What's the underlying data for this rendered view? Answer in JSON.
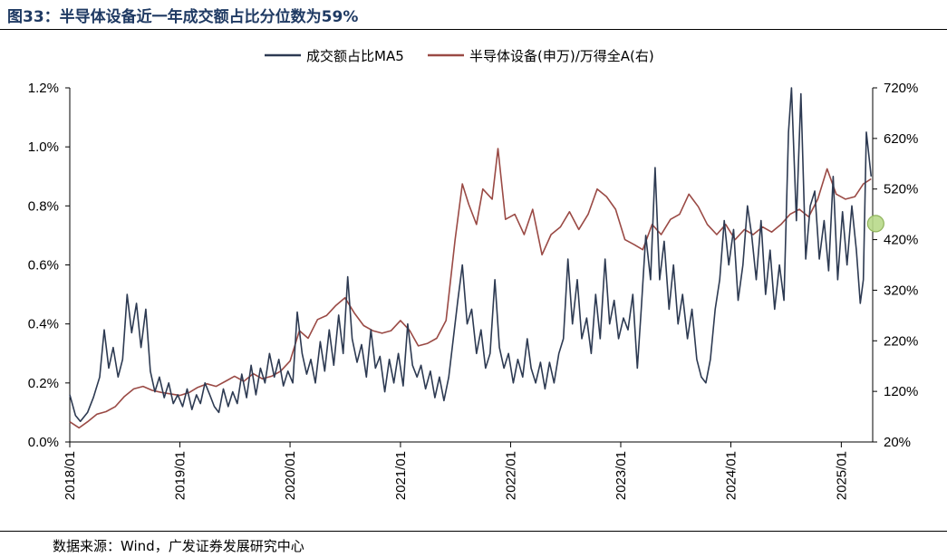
{
  "figure": {
    "title": "图33：半导体设备近一年成交额占比分位数为59%",
    "source": "数据来源：Wind，广发证券发展研究中心"
  },
  "chart_data": {
    "type": "line",
    "title": "图33：半导体设备近一年成交额占比分位数为59%",
    "legend_position": "top-center",
    "grid": false,
    "x_axis": {
      "type": "date",
      "range": [
        "2018-01-01",
        "2025-04-15"
      ],
      "tick_labels": [
        "2018/01",
        "2019/01",
        "2020/01",
        "2021/01",
        "2022/01",
        "2023/01",
        "2024/01",
        "2025/01"
      ],
      "tick_dates": [
        "2018-01-01",
        "2019-01-01",
        "2020-01-01",
        "2021-01-01",
        "2022-01-01",
        "2023-01-01",
        "2024-01-01",
        "2025-01-01"
      ]
    },
    "y_left": {
      "range": [
        0,
        1.2
      ],
      "unit": "%",
      "ticks": [
        0,
        0.2,
        0.4,
        0.6,
        0.8,
        1.0,
        1.2
      ],
      "tick_labels": [
        "0.0%",
        "0.2%",
        "0.4%",
        "0.6%",
        "0.8%",
        "1.0%",
        "1.2%"
      ]
    },
    "y_right": {
      "range": [
        20,
        720
      ],
      "unit": "%",
      "ticks": [
        20,
        120,
        220,
        320,
        420,
        520,
        620,
        720
      ],
      "tick_labels": [
        "20%",
        "120%",
        "220%",
        "320%",
        "420%",
        "520%",
        "620%",
        "720%"
      ]
    },
    "series": [
      {
        "name": "成交额占比MA5",
        "axis": "left",
        "color": "#2d3a52",
        "points": [
          [
            "2018-01-01",
            0.16
          ],
          [
            "2018-01-20",
            0.09
          ],
          [
            "2018-02-05",
            0.07
          ],
          [
            "2018-03-01",
            0.1
          ],
          [
            "2018-03-20",
            0.15
          ],
          [
            "2018-04-10",
            0.22
          ],
          [
            "2018-04-25",
            0.38
          ],
          [
            "2018-05-10",
            0.25
          ],
          [
            "2018-05-25",
            0.32
          ],
          [
            "2018-06-10",
            0.22
          ],
          [
            "2018-06-25",
            0.28
          ],
          [
            "2018-07-10",
            0.5
          ],
          [
            "2018-07-25",
            0.37
          ],
          [
            "2018-08-10",
            0.47
          ],
          [
            "2018-08-25",
            0.32
          ],
          [
            "2018-09-10",
            0.45
          ],
          [
            "2018-09-25",
            0.24
          ],
          [
            "2018-10-10",
            0.17
          ],
          [
            "2018-10-25",
            0.22
          ],
          [
            "2018-11-10",
            0.15
          ],
          [
            "2018-11-25",
            0.2
          ],
          [
            "2018-12-10",
            0.13
          ],
          [
            "2018-12-25",
            0.16
          ],
          [
            "2019-01-10",
            0.12
          ],
          [
            "2019-01-25",
            0.18
          ],
          [
            "2019-02-10",
            0.11
          ],
          [
            "2019-02-25",
            0.16
          ],
          [
            "2019-03-10",
            0.13
          ],
          [
            "2019-03-25",
            0.2
          ],
          [
            "2019-04-10",
            0.16
          ],
          [
            "2019-04-25",
            0.12
          ],
          [
            "2019-05-10",
            0.1
          ],
          [
            "2019-05-25",
            0.18
          ],
          [
            "2019-06-10",
            0.12
          ],
          [
            "2019-06-25",
            0.17
          ],
          [
            "2019-07-10",
            0.13
          ],
          [
            "2019-07-25",
            0.23
          ],
          [
            "2019-08-10",
            0.15
          ],
          [
            "2019-08-25",
            0.26
          ],
          [
            "2019-09-10",
            0.16
          ],
          [
            "2019-09-25",
            0.25
          ],
          [
            "2019-10-10",
            0.2
          ],
          [
            "2019-10-25",
            0.3
          ],
          [
            "2019-11-10",
            0.22
          ],
          [
            "2019-11-25",
            0.28
          ],
          [
            "2019-12-10",
            0.19
          ],
          [
            "2019-12-25",
            0.24
          ],
          [
            "2020-01-10",
            0.2
          ],
          [
            "2020-01-25",
            0.44
          ],
          [
            "2020-02-10",
            0.3
          ],
          [
            "2020-02-25",
            0.23
          ],
          [
            "2020-03-10",
            0.28
          ],
          [
            "2020-03-25",
            0.2
          ],
          [
            "2020-04-10",
            0.34
          ],
          [
            "2020-04-25",
            0.24
          ],
          [
            "2020-05-10",
            0.38
          ],
          [
            "2020-05-25",
            0.26
          ],
          [
            "2020-06-10",
            0.43
          ],
          [
            "2020-06-25",
            0.3
          ],
          [
            "2020-07-10",
            0.56
          ],
          [
            "2020-07-25",
            0.35
          ],
          [
            "2020-08-10",
            0.27
          ],
          [
            "2020-08-25",
            0.33
          ],
          [
            "2020-09-10",
            0.22
          ],
          [
            "2020-09-25",
            0.38
          ],
          [
            "2020-10-10",
            0.25
          ],
          [
            "2020-10-25",
            0.29
          ],
          [
            "2020-11-10",
            0.17
          ],
          [
            "2020-11-25",
            0.28
          ],
          [
            "2020-12-10",
            0.2
          ],
          [
            "2020-12-25",
            0.3
          ],
          [
            "2021-01-10",
            0.19
          ],
          [
            "2021-01-25",
            0.4
          ],
          [
            "2021-02-10",
            0.26
          ],
          [
            "2021-02-25",
            0.22
          ],
          [
            "2021-03-10",
            0.26
          ],
          [
            "2021-03-25",
            0.18
          ],
          [
            "2021-04-10",
            0.24
          ],
          [
            "2021-04-25",
            0.15
          ],
          [
            "2021-05-10",
            0.22
          ],
          [
            "2021-05-25",
            0.14
          ],
          [
            "2021-06-10",
            0.22
          ],
          [
            "2021-06-25",
            0.35
          ],
          [
            "2021-07-10",
            0.48
          ],
          [
            "2021-07-25",
            0.6
          ],
          [
            "2021-08-10",
            0.4
          ],
          [
            "2021-08-25",
            0.45
          ],
          [
            "2021-09-10",
            0.3
          ],
          [
            "2021-09-25",
            0.38
          ],
          [
            "2021-10-10",
            0.25
          ],
          [
            "2021-10-25",
            0.3
          ],
          [
            "2021-11-10",
            0.55
          ],
          [
            "2021-11-25",
            0.32
          ],
          [
            "2021-12-10",
            0.25
          ],
          [
            "2021-12-25",
            0.3
          ],
          [
            "2022-01-10",
            0.2
          ],
          [
            "2022-01-25",
            0.28
          ],
          [
            "2022-02-10",
            0.22
          ],
          [
            "2022-02-25",
            0.35
          ],
          [
            "2022-03-10",
            0.25
          ],
          [
            "2022-03-25",
            0.2
          ],
          [
            "2022-04-10",
            0.27
          ],
          [
            "2022-04-25",
            0.18
          ],
          [
            "2022-05-10",
            0.27
          ],
          [
            "2022-05-25",
            0.2
          ],
          [
            "2022-06-10",
            0.3
          ],
          [
            "2022-06-25",
            0.35
          ],
          [
            "2022-07-10",
            0.62
          ],
          [
            "2022-07-25",
            0.4
          ],
          [
            "2022-08-10",
            0.55
          ],
          [
            "2022-08-25",
            0.35
          ],
          [
            "2022-09-10",
            0.42
          ],
          [
            "2022-09-25",
            0.3
          ],
          [
            "2022-10-10",
            0.5
          ],
          [
            "2022-10-25",
            0.35
          ],
          [
            "2022-11-10",
            0.62
          ],
          [
            "2022-11-25",
            0.4
          ],
          [
            "2022-12-10",
            0.48
          ],
          [
            "2022-12-25",
            0.35
          ],
          [
            "2023-01-10",
            0.42
          ],
          [
            "2023-01-25",
            0.38
          ],
          [
            "2023-02-10",
            0.5
          ],
          [
            "2023-02-25",
            0.25
          ],
          [
            "2023-03-10",
            0.45
          ],
          [
            "2023-03-25",
            0.7
          ],
          [
            "2023-04-10",
            0.55
          ],
          [
            "2023-04-25",
            0.93
          ],
          [
            "2023-05-10",
            0.55
          ],
          [
            "2023-05-25",
            0.68
          ],
          [
            "2023-06-10",
            0.45
          ],
          [
            "2023-06-25",
            0.6
          ],
          [
            "2023-07-10",
            0.4
          ],
          [
            "2023-07-25",
            0.5
          ],
          [
            "2023-08-10",
            0.35
          ],
          [
            "2023-08-25",
            0.45
          ],
          [
            "2023-09-10",
            0.28
          ],
          [
            "2023-09-25",
            0.22
          ],
          [
            "2023-10-10",
            0.2
          ],
          [
            "2023-10-25",
            0.28
          ],
          [
            "2023-11-10",
            0.45
          ],
          [
            "2023-11-25",
            0.55
          ],
          [
            "2023-12-10",
            0.75
          ],
          [
            "2023-12-25",
            0.6
          ],
          [
            "2024-01-10",
            0.72
          ],
          [
            "2024-01-25",
            0.48
          ],
          [
            "2024-02-10",
            0.6
          ],
          [
            "2024-02-25",
            0.8
          ],
          [
            "2024-03-10",
            0.7
          ],
          [
            "2024-03-25",
            0.55
          ],
          [
            "2024-04-10",
            0.75
          ],
          [
            "2024-04-25",
            0.5
          ],
          [
            "2024-05-10",
            0.65
          ],
          [
            "2024-05-25",
            0.45
          ],
          [
            "2024-06-10",
            0.6
          ],
          [
            "2024-06-25",
            0.48
          ],
          [
            "2024-07-10",
            1.05
          ],
          [
            "2024-07-20",
            1.2
          ],
          [
            "2024-08-05",
            0.75
          ],
          [
            "2024-08-20",
            1.18
          ],
          [
            "2024-09-05",
            0.62
          ],
          [
            "2024-09-20",
            0.8
          ],
          [
            "2024-10-05",
            0.85
          ],
          [
            "2024-10-20",
            0.62
          ],
          [
            "2024-11-05",
            0.75
          ],
          [
            "2024-11-20",
            0.58
          ],
          [
            "2024-12-05",
            0.9
          ],
          [
            "2024-12-20",
            0.55
          ],
          [
            "2025-01-05",
            0.78
          ],
          [
            "2025-01-20",
            0.6
          ],
          [
            "2025-02-05",
            0.8
          ],
          [
            "2025-02-20",
            0.65
          ],
          [
            "2025-03-05",
            0.47
          ],
          [
            "2025-03-15",
            0.55
          ],
          [
            "2025-03-25",
            1.05
          ],
          [
            "2025-04-10",
            0.9
          ]
        ]
      },
      {
        "name": "半导体设备(申万)/万得全A(右)",
        "axis": "right",
        "color": "#9a4a45",
        "points": [
          [
            "2018-01-01",
            60
          ],
          [
            "2018-02-01",
            48
          ],
          [
            "2018-03-01",
            60
          ],
          [
            "2018-04-01",
            75
          ],
          [
            "2018-05-01",
            80
          ],
          [
            "2018-06-01",
            90
          ],
          [
            "2018-07-01",
            110
          ],
          [
            "2018-08-01",
            125
          ],
          [
            "2018-09-01",
            130
          ],
          [
            "2018-10-01",
            122
          ],
          [
            "2018-11-01",
            118
          ],
          [
            "2018-12-01",
            115
          ],
          [
            "2019-01-01",
            112
          ],
          [
            "2019-02-01",
            118
          ],
          [
            "2019-03-01",
            128
          ],
          [
            "2019-04-01",
            135
          ],
          [
            "2019-05-01",
            130
          ],
          [
            "2019-06-01",
            140
          ],
          [
            "2019-07-01",
            150
          ],
          [
            "2019-08-01",
            140
          ],
          [
            "2019-09-01",
            155
          ],
          [
            "2019-10-01",
            145
          ],
          [
            "2019-11-01",
            150
          ],
          [
            "2019-12-01",
            160
          ],
          [
            "2020-01-01",
            180
          ],
          [
            "2020-02-01",
            240
          ],
          [
            "2020-03-01",
            225
          ],
          [
            "2020-04-01",
            262
          ],
          [
            "2020-05-01",
            270
          ],
          [
            "2020-06-01",
            290
          ],
          [
            "2020-07-01",
            305
          ],
          [
            "2020-08-01",
            275
          ],
          [
            "2020-09-01",
            250
          ],
          [
            "2020-10-01",
            240
          ],
          [
            "2020-11-01",
            235
          ],
          [
            "2020-12-01",
            240
          ],
          [
            "2021-01-01",
            260
          ],
          [
            "2021-02-01",
            240
          ],
          [
            "2021-03-01",
            210
          ],
          [
            "2021-04-01",
            215
          ],
          [
            "2021-05-01",
            225
          ],
          [
            "2021-06-01",
            260
          ],
          [
            "2021-07-01",
            420
          ],
          [
            "2021-07-25",
            530
          ],
          [
            "2021-08-15",
            490
          ],
          [
            "2021-09-10",
            450
          ],
          [
            "2021-10-01",
            520
          ],
          [
            "2021-11-01",
            500
          ],
          [
            "2021-11-20",
            600
          ],
          [
            "2021-12-15",
            460
          ],
          [
            "2022-01-15",
            470
          ],
          [
            "2022-02-15",
            430
          ],
          [
            "2022-03-15",
            480
          ],
          [
            "2022-04-15",
            390
          ],
          [
            "2022-05-15",
            430
          ],
          [
            "2022-06-15",
            445
          ],
          [
            "2022-07-15",
            475
          ],
          [
            "2022-08-15",
            440
          ],
          [
            "2022-09-15",
            470
          ],
          [
            "2022-10-15",
            520
          ],
          [
            "2022-11-15",
            505
          ],
          [
            "2022-12-15",
            480
          ],
          [
            "2023-01-15",
            420
          ],
          [
            "2023-02-15",
            410
          ],
          [
            "2023-03-15",
            400
          ],
          [
            "2023-04-15",
            450
          ],
          [
            "2023-05-15",
            430
          ],
          [
            "2023-06-15",
            460
          ],
          [
            "2023-07-15",
            470
          ],
          [
            "2023-08-15",
            510
          ],
          [
            "2023-09-15",
            485
          ],
          [
            "2023-10-15",
            450
          ],
          [
            "2023-11-15",
            430
          ],
          [
            "2023-12-15",
            450
          ],
          [
            "2024-01-15",
            420
          ],
          [
            "2024-02-15",
            440
          ],
          [
            "2024-03-15",
            430
          ],
          [
            "2024-04-15",
            445
          ],
          [
            "2024-05-15",
            435
          ],
          [
            "2024-06-15",
            450
          ],
          [
            "2024-07-15",
            470
          ],
          [
            "2024-08-15",
            480
          ],
          [
            "2024-09-15",
            465
          ],
          [
            "2024-10-15",
            500
          ],
          [
            "2024-11-15",
            560
          ],
          [
            "2024-12-15",
            510
          ],
          [
            "2025-01-15",
            500
          ],
          [
            "2025-02-15",
            505
          ],
          [
            "2025-03-15",
            530
          ],
          [
            "2025-04-10",
            540
          ]
        ]
      }
    ]
  }
}
